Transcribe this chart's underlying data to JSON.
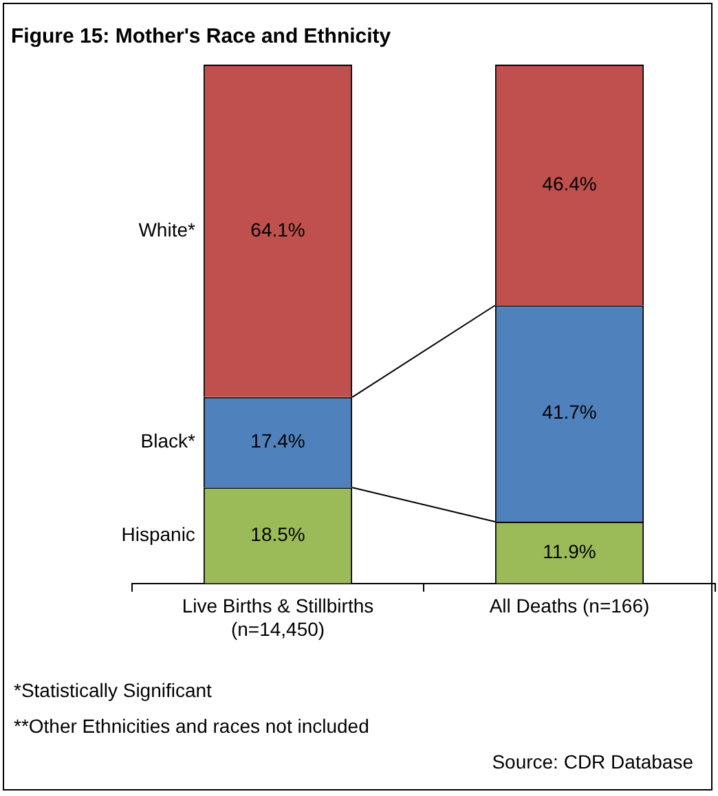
{
  "chart_data": {
    "type": "bar",
    "title": "Figure 15: Mother's Race and Ethnicity",
    "categories": [
      "Live Births & Stillbirths\n(n=14,450)",
      "All Deaths (n=166)"
    ],
    "series": [
      {
        "name": "Hispanic",
        "color": "#9bbb59",
        "values": [
          18.5,
          11.9
        ],
        "value_labels": [
          "18.5%",
          "11.9%"
        ]
      },
      {
        "name": "Black*",
        "color": "#4f81bd",
        "values": [
          17.4,
          41.7
        ],
        "value_labels": [
          "17.4%",
          "41.7%"
        ]
      },
      {
        "name": "White*",
        "color": "#c0504d",
        "values": [
          64.1,
          46.4
        ],
        "value_labels": [
          "64.1%",
          "46.4%"
        ]
      }
    ],
    "stacked": true,
    "tick_labels": "x",
    "legend": false,
    "grid": false,
    "annotations": [
      "*Statistically Significant",
      "**Other Ethnicities and races not included",
      "Source: CDR Database"
    ]
  }
}
